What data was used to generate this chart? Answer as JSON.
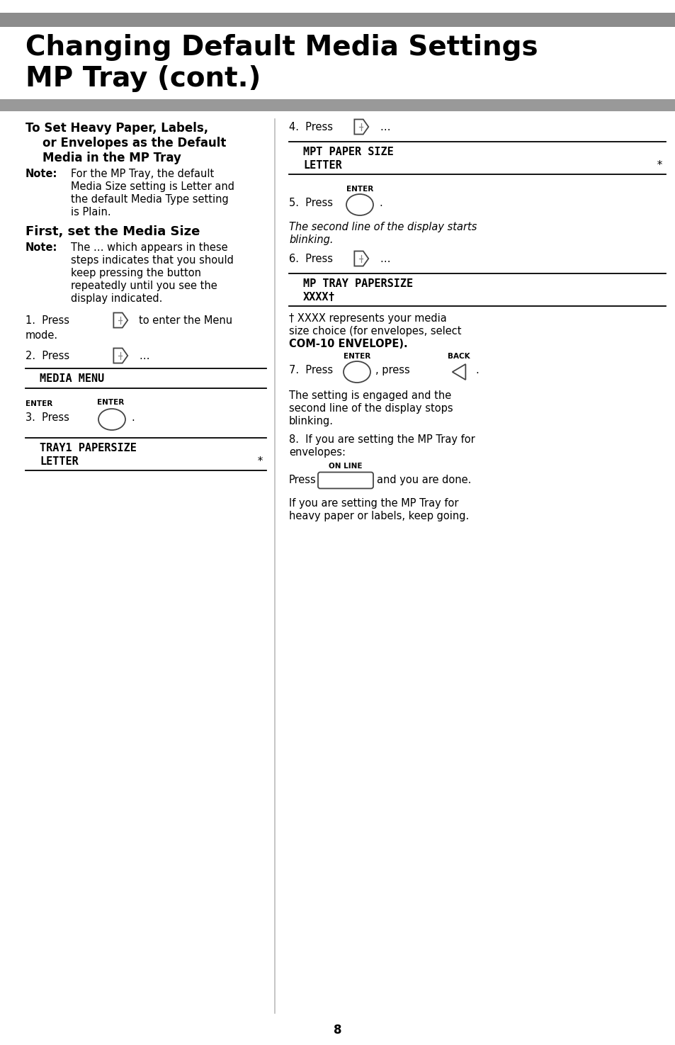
{
  "title_line1": "Changing Default Media Settings",
  "title_line2": "MP Tray (cont.)",
  "gray_bar_color": "#8c8c8c",
  "gray_bar2_color": "#999999",
  "background_color": "#ffffff",
  "page_number": "8",
  "enter_label": "ENTER",
  "back_label": "BACK",
  "online_label": "ON LINE"
}
